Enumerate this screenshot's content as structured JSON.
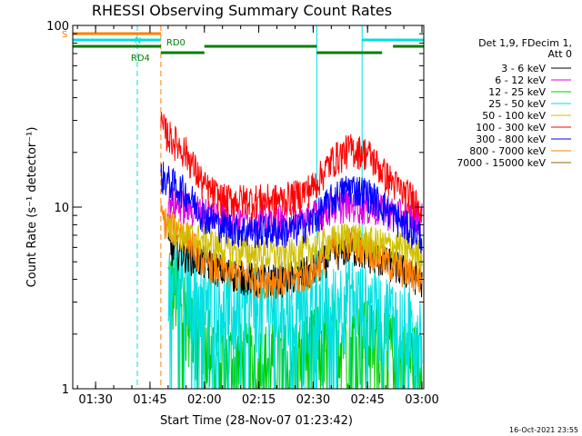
{
  "chart_data": {
    "type": "line",
    "title": "RHESSI Observing Summary Count Rates",
    "xlabel": "Start Time (28-Nov-07 01:23:42)",
    "ylabel": "Count Rate (s⁻¹ detector⁻¹)",
    "y_scale": "log",
    "ylim": [
      1,
      100
    ],
    "xlim": [
      "01:23:42",
      "03:00:30"
    ],
    "x_ticks": [
      "01:30",
      "01:45",
      "02:00",
      "02:15",
      "02:30",
      "02:45",
      "03:00"
    ],
    "y_ticks": [
      "1",
      "10",
      "100"
    ],
    "legend_placement": "right",
    "legend_header": [
      "Det 1,9, FDecim 1,",
      "Att 0"
    ],
    "timestamp": "16-Oct-2021 23:55",
    "series": [
      {
        "name": "3 - 6 keV",
        "color": "#000000",
        "x": [
          "01:50",
          "01:55",
          "02:00",
          "02:05",
          "02:10",
          "02:15",
          "02:20",
          "02:25",
          "02:30",
          "02:35",
          "02:40",
          "02:45",
          "02:50",
          "02:55",
          "03:00"
        ],
        "values": [
          6,
          5.5,
          5,
          4.5,
          4.2,
          4,
          4,
          4.2,
          4.5,
          5.5,
          6,
          5.5,
          5,
          4.5,
          4
        ]
      },
      {
        "name": "6 - 12 keV",
        "color": "#e000e0",
        "x": [
          "01:50",
          "01:55",
          "02:00",
          "02:05",
          "02:10",
          "02:15",
          "02:20",
          "02:25",
          "02:30",
          "02:35",
          "02:40",
          "02:45",
          "02:50",
          "02:55",
          "03:00"
        ],
        "values": [
          11,
          10,
          9.5,
          9,
          8.5,
          8.5,
          8.5,
          8.5,
          9,
          10,
          10.5,
          10,
          9.5,
          9,
          9
        ]
      },
      {
        "name": "12 - 25 keV",
        "color": "#00cc00",
        "x": [
          "01:50",
          "01:55",
          "02:00",
          "02:05",
          "02:10",
          "02:15",
          "02:20",
          "02:25",
          "02:30",
          "02:35",
          "02:40",
          "02:45",
          "02:50",
          "02:55",
          "03:00"
        ],
        "values": [
          4,
          3,
          2,
          1.5,
          1.5,
          1.5,
          1.5,
          1.5,
          1.8,
          2,
          2,
          2,
          1.8,
          1.5,
          1.5
        ]
      },
      {
        "name": "25 - 50 keV",
        "color": "#00e0e0",
        "x": [
          "01:50",
          "01:55",
          "02:00",
          "02:05",
          "02:10",
          "02:15",
          "02:20",
          "02:25",
          "02:30",
          "02:35",
          "02:40",
          "02:45",
          "02:50",
          "02:55",
          "03:00"
        ],
        "values": [
          4.5,
          4,
          3.5,
          3,
          3,
          3,
          3,
          3,
          3,
          3,
          3.5,
          3,
          2.8,
          2.5,
          2.2
        ]
      },
      {
        "name": "50 - 100 keV",
        "color": "#d0c000",
        "x": [
          "01:50",
          "01:55",
          "02:00",
          "02:05",
          "02:10",
          "02:15",
          "02:20",
          "02:25",
          "02:30",
          "02:35",
          "02:40",
          "02:45",
          "02:50",
          "02:55",
          "03:00"
        ],
        "values": [
          8,
          7,
          6.5,
          6,
          5.8,
          5.5,
          5.5,
          5.5,
          6,
          6.5,
          7,
          6.5,
          6.2,
          6,
          5.5
        ]
      },
      {
        "name": "100 - 300 keV",
        "color": "#ff0000",
        "x": [
          "01:48",
          "01:50",
          "01:55",
          "02:00",
          "02:05",
          "02:10",
          "02:15",
          "02:20",
          "02:25",
          "02:30",
          "02:35",
          "02:40",
          "02:45",
          "02:50",
          "02:55",
          "03:00"
        ],
        "values": [
          28,
          25,
          20,
          13,
          11,
          11,
          11,
          11,
          11.5,
          13,
          18,
          21,
          20,
          15,
          12,
          10.5
        ]
      },
      {
        "name": "300 - 800 keV",
        "color": "#0000ff",
        "x": [
          "01:48",
          "01:50",
          "01:55",
          "02:00",
          "02:05",
          "02:10",
          "02:15",
          "02:20",
          "02:25",
          "02:30",
          "02:35",
          "02:40",
          "02:45",
          "02:50",
          "02:55",
          "03:00"
        ],
        "values": [
          15,
          14,
          12,
          9,
          8,
          7.5,
          7.5,
          7.5,
          7.5,
          8.5,
          11,
          13,
          12,
          10,
          8,
          7
        ]
      },
      {
        "name": "800 - 7000 keV",
        "color": "#ff8000",
        "x": [
          "01:48",
          "01:50",
          "01:55",
          "02:00",
          "02:05",
          "02:10",
          "02:15",
          "02:20",
          "02:25",
          "02:30",
          "02:35",
          "02:40",
          "02:45",
          "02:50",
          "02:55",
          "03:00"
        ],
        "values": [
          9,
          8,
          7,
          5,
          4.5,
          4.2,
          4,
          4,
          4,
          4.5,
          6,
          6.5,
          6,
          5,
          4.5,
          4
        ]
      },
      {
        "name": "7000 - 15000 keV",
        "color": "#a06000",
        "x": [],
        "values": []
      }
    ],
    "flags": [
      {
        "label": "S",
        "color": "#ff8000",
        "start": "01:23:42",
        "end": "01:48:00",
        "level": 1
      },
      {
        "label": "N",
        "color": "#00e0e0",
        "start": "01:23:42",
        "end": "01:48:00",
        "level": 2
      },
      {
        "label": "N",
        "color": "#00e0e0",
        "start": "02:43:30",
        "end": "03:00:30",
        "level": 2
      },
      {
        "label": "RD0",
        "color": "#008000",
        "start": "01:23:42",
        "end": "01:48:00",
        "level": 3
      },
      {
        "label": "",
        "color": "#008000",
        "start": "02:00:00",
        "end": "02:31:00",
        "level": 3
      },
      {
        "label": "",
        "color": "#008000",
        "start": "02:52:00",
        "end": "03:00:30",
        "level": 3
      },
      {
        "label": "RD4",
        "color": "#008000",
        "start": "01:48:00",
        "end": "02:00:00",
        "level": 4
      },
      {
        "label": "",
        "color": "#008000",
        "start": "02:31:00",
        "end": "02:49:00",
        "level": 4
      }
    ],
    "vlines": [
      {
        "t": "01:41:30",
        "color": "#00e0e0",
        "style": "dashed"
      },
      {
        "t": "01:48:00",
        "color": "#ff8000",
        "style": "dashed"
      },
      {
        "t": "02:31:00",
        "color": "#00e0e0",
        "style": "solid"
      },
      {
        "t": "02:43:30",
        "color": "#00e0e0",
        "style": "solid"
      },
      {
        "t": "03:00:30",
        "color": "#00e0e0",
        "style": "dashed"
      },
      {
        "t": "01:23:42",
        "color": "#00cc00",
        "style": "solid"
      }
    ]
  }
}
